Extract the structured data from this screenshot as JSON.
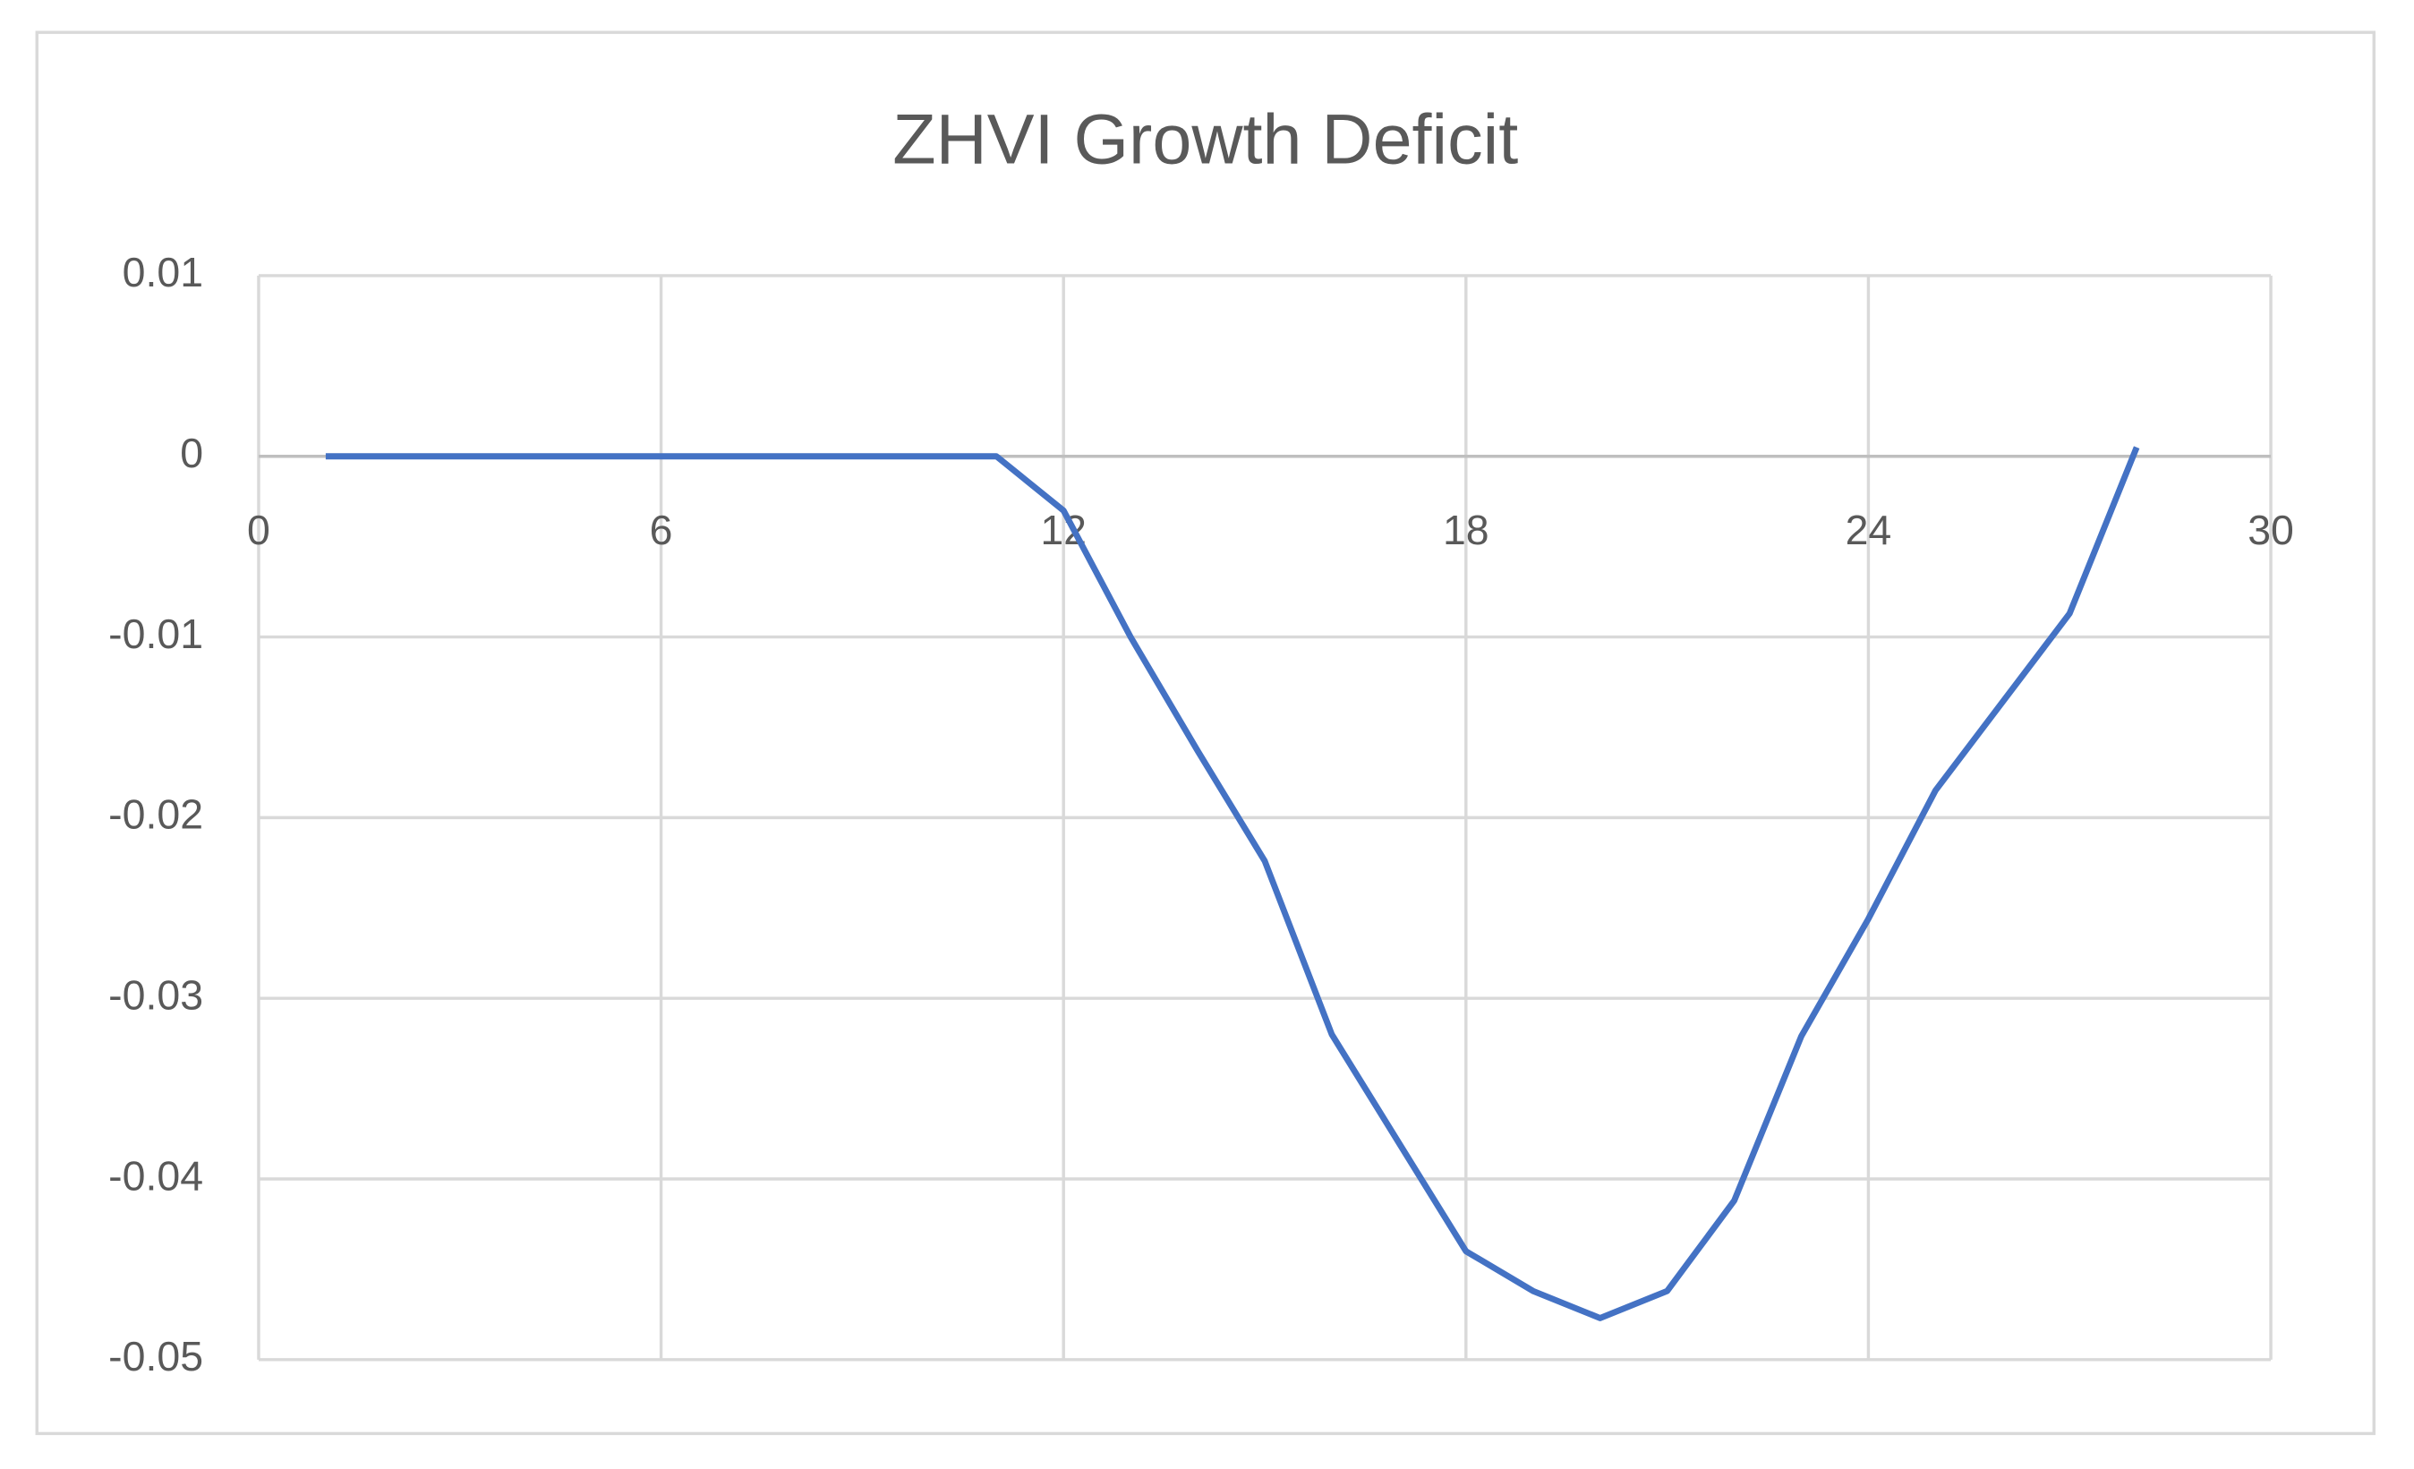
{
  "chart_data": {
    "type": "line",
    "title": "ZHVI Growth Deficit",
    "x": [
      1,
      2,
      3,
      4,
      5,
      6,
      7,
      8,
      9,
      10,
      11,
      12,
      13,
      14,
      15,
      16,
      17,
      18,
      19,
      20,
      21,
      22,
      23,
      24,
      25,
      26,
      27,
      28
    ],
    "series": [
      {
        "name": "ZHVI Growth Deficit",
        "color": "#4472c4",
        "values": [
          0,
          0,
          0,
          0,
          0,
          0,
          0,
          0,
          0,
          0,
          0,
          -0.003,
          -0.01,
          -0.0163,
          -0.0224,
          -0.032,
          -0.038,
          -0.044,
          -0.0462,
          -0.0477,
          -0.0462,
          -0.0412,
          -0.0321,
          -0.0256,
          -0.0185,
          -0.0136,
          -0.0087,
          0.0005
        ]
      }
    ],
    "xlim": [
      0,
      30
    ],
    "xticks": [
      0,
      6,
      12,
      18,
      24,
      30
    ],
    "ylim": [
      -0.05,
      0.01
    ],
    "yticks": [
      0.01,
      0,
      -0.01,
      -0.02,
      -0.03,
      -0.04,
      -0.05
    ],
    "grid": true
  }
}
